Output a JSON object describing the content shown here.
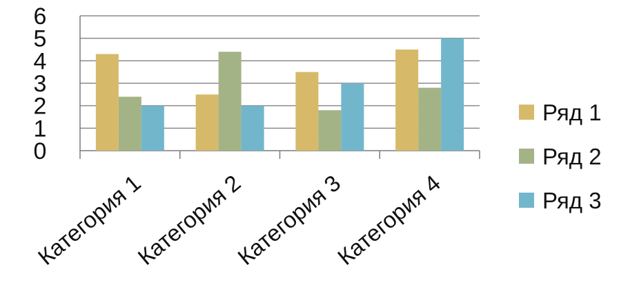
{
  "chart_data": {
    "type": "bar",
    "categories": [
      "Категория 1",
      "Категория 2",
      "Категория 3",
      "Категория 4"
    ],
    "series": [
      {
        "name": "Ряд 1",
        "values": [
          4.3,
          2.5,
          3.5,
          4.5
        ],
        "color": "#D6BA6A"
      },
      {
        "name": "Ряд 2",
        "values": [
          2.4,
          4.4,
          1.8,
          2.8
        ],
        "color": "#A3B385"
      },
      {
        "name": "Ряд 3",
        "values": [
          2,
          2,
          3,
          5
        ],
        "color": "#72B6CC"
      }
    ],
    "title": "",
    "xlabel": "",
    "ylabel": "",
    "ylim": [
      0,
      6
    ],
    "yticks": [
      "0",
      "1",
      "2",
      "3",
      "4",
      "5",
      "6"
    ],
    "grid": true,
    "legend_position": "right"
  }
}
